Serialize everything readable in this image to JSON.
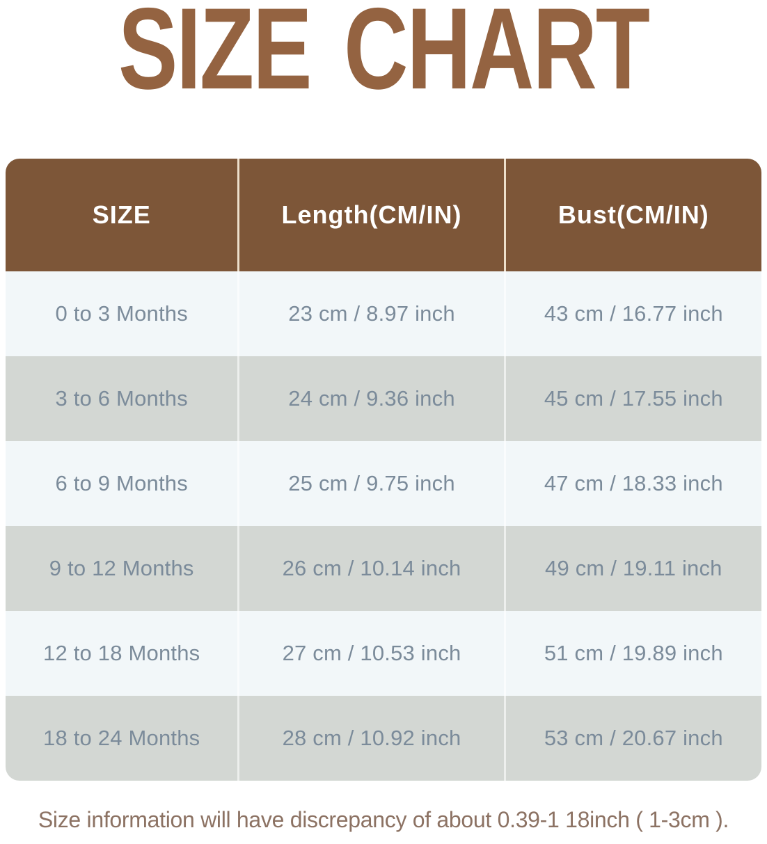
{
  "title": "SIZE CHART",
  "chart_data": {
    "type": "table",
    "title": "SIZE CHART",
    "columns": [
      "SIZE",
      "Length(CM/IN)",
      "Bust(CM/IN)"
    ],
    "categories": [
      "0 to 3 Months",
      "3 to 6 Months",
      "6 to 9 Months",
      "9 to 12 Months",
      "12 to 18 Months",
      "18 to 24 Months"
    ],
    "rows": [
      [
        "0 to 3 Months",
        "23 cm / 8.97 inch",
        "43 cm / 16.77 inch"
      ],
      [
        "3 to 6 Months",
        "24 cm / 9.36 inch",
        "45 cm / 17.55 inch"
      ],
      [
        "6 to 9 Months",
        "25 cm / 9.75 inch",
        "47 cm / 18.33 inch"
      ],
      [
        "9 to 12 Months",
        "26 cm / 10.14 inch",
        "49 cm / 19.11 inch"
      ],
      [
        "12 to 18 Months",
        "27 cm / 10.53 inch",
        "51 cm / 19.89 inch"
      ],
      [
        "18 to 24 Months",
        "28 cm / 10.92 inch",
        "53 cm / 20.67 inch"
      ]
    ],
    "series": [
      {
        "name": "Length (cm)",
        "values": [
          23,
          24,
          25,
          26,
          27,
          28
        ]
      },
      {
        "name": "Length (inch)",
        "values": [
          8.97,
          9.36,
          9.75,
          10.14,
          10.53,
          10.92
        ]
      },
      {
        "name": "Bust (cm)",
        "values": [
          43,
          45,
          47,
          49,
          51,
          53
        ]
      },
      {
        "name": "Bust (inch)",
        "values": [
          16.77,
          17.55,
          18.33,
          19.11,
          19.89,
          20.67
        ]
      }
    ]
  },
  "footer_note": "Size information will have discrepancy of about 0.39-1 18inch ( 1-3cm ).",
  "colors": {
    "title_text": "#946341",
    "header_bg": "#7d5638",
    "header_text": "#ffffff",
    "row_light": "#f2f7f9",
    "row_gray": "#d3d7d3",
    "cell_text": "#7b8b9a",
    "footer_text": "#8c7263"
  }
}
